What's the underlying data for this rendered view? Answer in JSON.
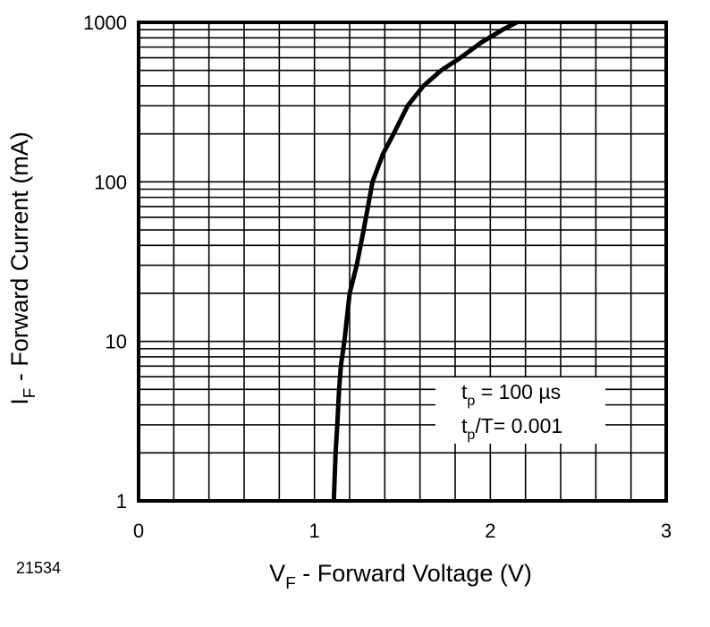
{
  "figure_id": "21534",
  "chart_data": {
    "type": "line",
    "x_scale": "linear",
    "y_scale": "log",
    "xlim": [
      0,
      3
    ],
    "ylim": [
      1,
      1000
    ],
    "x_ticks": [
      "0",
      "1",
      "2",
      "3"
    ],
    "y_ticks": [
      "1",
      "10",
      "100",
      "1000"
    ],
    "grid": true,
    "xlabel": {
      "main": "V",
      "sub": "F",
      "rest": " - Forward Voltage (V)"
    },
    "ylabel": {
      "main": "I",
      "sub": "F",
      "rest": " - Forward Current (mA)"
    },
    "annotations": [
      {
        "main": "t",
        "sub": "p",
        "rest": " = 100 µs"
      },
      {
        "main": "t",
        "sub": "p",
        "rest": "/T= 0.001"
      }
    ],
    "series": [
      {
        "x": [
          1.11,
          1.12,
          1.13,
          1.14,
          1.15,
          1.17,
          1.2,
          1.24,
          1.28,
          1.33,
          1.39,
          1.45,
          1.53,
          1.62,
          1.72,
          1.83,
          1.95,
          2.07,
          2.15
        ],
        "y": [
          1,
          2,
          3,
          5,
          7,
          10,
          20,
          30,
          50,
          100,
          150,
          200,
          300,
          400,
          500,
          600,
          750,
          900,
          1000
        ]
      }
    ]
  }
}
